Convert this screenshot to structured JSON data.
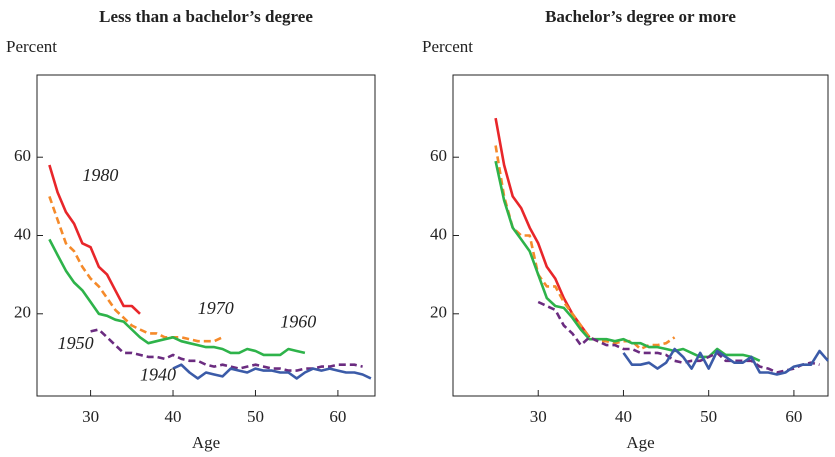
{
  "chart_data": [
    {
      "type": "line",
      "title": "Less than a bachelor’s degree",
      "y_label": "Percent",
      "x_label": "Age",
      "xlim": [
        23.5,
        64.5
      ],
      "ylim": [
        -1,
        81
      ],
      "xticks": [
        30,
        40,
        50,
        60
      ],
      "yticks": [
        20,
        40,
        60
      ],
      "grid": false,
      "series": [
        {
          "name": "1980",
          "color": "#e8262a",
          "dashed": false,
          "x": [
            25,
            26,
            27,
            28,
            29,
            30,
            31,
            32,
            33,
            34,
            35,
            36
          ],
          "values": [
            58,
            51,
            46,
            43,
            38,
            37,
            32,
            30,
            26,
            22,
            22,
            20
          ]
        },
        {
          "name": "1970",
          "color": "#f58a2a",
          "dashed": true,
          "x": [
            25,
            26,
            27,
            28,
            29,
            30,
            31,
            32,
            33,
            34,
            35,
            36,
            37,
            38,
            39,
            40,
            41,
            42,
            43,
            44,
            45,
            46
          ],
          "values": [
            50,
            44,
            38,
            36,
            32,
            29,
            27,
            24,
            21,
            19,
            17,
            16,
            15,
            15,
            14,
            14,
            14,
            13.5,
            13,
            13,
            13,
            14
          ]
        },
        {
          "name": "1960",
          "color": "#2eb34a",
          "dashed": false,
          "x": [
            25,
            26,
            27,
            28,
            29,
            30,
            31,
            32,
            33,
            34,
            35,
            36,
            37,
            38,
            39,
            40,
            41,
            42,
            43,
            44,
            45,
            46,
            47,
            48,
            49,
            50,
            51,
            52,
            53,
            54,
            55,
            56
          ],
          "values": [
            39,
            35,
            31,
            28,
            26,
            23,
            20,
            19.5,
            18.5,
            18,
            16,
            14,
            12.5,
            13,
            13.5,
            14,
            13,
            12.5,
            12,
            11.5,
            11.5,
            11,
            10,
            10,
            11,
            10.5,
            9.5,
            9.5,
            9.5,
            11,
            10.5,
            10
          ]
        },
        {
          "name": "1950",
          "color": "#6b2c80",
          "dashed": true,
          "x": [
            30,
            31,
            32,
            33,
            34,
            35,
            36,
            37,
            38,
            39,
            40,
            41,
            42,
            43,
            44,
            45,
            46,
            47,
            48,
            49,
            50,
            51,
            52,
            53,
            54,
            55,
            56,
            57,
            58,
            59,
            60,
            61,
            62,
            63
          ],
          "values": [
            15.5,
            16,
            14,
            12,
            10,
            10,
            9.5,
            9,
            9,
            8.5,
            9.5,
            8.5,
            8,
            8,
            7,
            6.5,
            7,
            6.5,
            6,
            6.5,
            7,
            6.5,
            6,
            6,
            5.5,
            5.5,
            6,
            6,
            6.5,
            6.5,
            7,
            7,
            7,
            6.5
          ]
        },
        {
          "name": "1940",
          "color": "#3b5ba8",
          "dashed": false,
          "x": [
            40,
            41,
            42,
            43,
            44,
            45,
            46,
            47,
            48,
            49,
            50,
            51,
            52,
            53,
            54,
            55,
            56,
            57,
            58,
            59,
            60,
            61,
            62,
            63,
            64
          ],
          "values": [
            6,
            7,
            5,
            3.5,
            5,
            4.5,
            4,
            6,
            5.5,
            5,
            6,
            5.5,
            5.5,
            5,
            5,
            3.5,
            5,
            6,
            5.5,
            6,
            5.5,
            5,
            5,
            4.5,
            3.5
          ]
        }
      ]
    },
    {
      "type": "line",
      "title": "Bachelor’s degree or more",
      "y_label": "Percent",
      "x_label": "Age",
      "xlim": [
        20,
        64
      ],
      "ylim": [
        -1,
        81
      ],
      "xticks": [
        30,
        40,
        50,
        60
      ],
      "yticks": [
        20,
        40,
        60
      ],
      "grid": false,
      "series": [
        {
          "color": "#e8262a",
          "dashed": false,
          "x": [
            25,
            26,
            27,
            28,
            29,
            30,
            31,
            32,
            33,
            34,
            35,
            36
          ],
          "values": [
            70,
            58,
            50,
            47,
            42,
            38,
            32,
            29,
            24,
            20,
            17,
            14
          ]
        },
        {
          "color": "#f58a2a",
          "dashed": true,
          "x": [
            25,
            26,
            27,
            28,
            29,
            30,
            31,
            32,
            33,
            34,
            35,
            36,
            37,
            38,
            39,
            40,
            41,
            42,
            43,
            44,
            45,
            46
          ],
          "values": [
            63,
            50,
            42,
            40,
            40,
            30,
            27,
            27,
            23,
            20,
            17,
            14,
            13,
            13,
            12.5,
            13,
            13,
            11,
            12,
            12,
            12.5,
            14
          ]
        },
        {
          "color": "#2eb34a",
          "dashed": false,
          "x": [
            25,
            26,
            27,
            28,
            29,
            30,
            31,
            32,
            33,
            34,
            35,
            36,
            37,
            38,
            39,
            40,
            41,
            42,
            43,
            44,
            45,
            46,
            47,
            48,
            49,
            50,
            51,
            52,
            53,
            54,
            55,
            56
          ],
          "values": [
            59,
            49,
            42,
            39,
            36,
            30,
            24,
            22,
            21.5,
            19,
            16,
            13.5,
            13.5,
            13.5,
            13,
            13.5,
            12.5,
            12.5,
            11.5,
            11.5,
            11,
            10.5,
            11,
            10,
            9,
            9,
            11,
            9.5,
            9.5,
            9.5,
            9,
            8
          ]
        },
        {
          "color": "#6b2c80",
          "dashed": true,
          "x": [
            30,
            31,
            32,
            33,
            34,
            35,
            36,
            37,
            38,
            39,
            40,
            41,
            42,
            43,
            44,
            45,
            46,
            47,
            48,
            49,
            50,
            51,
            52,
            53,
            54,
            55,
            56,
            57,
            58,
            59,
            60,
            61,
            62,
            63
          ],
          "values": [
            23,
            22,
            21,
            17,
            15,
            12,
            14,
            13,
            12,
            12,
            11,
            11,
            10,
            10,
            10,
            9.5,
            8,
            7.5,
            8,
            8,
            9,
            10,
            8,
            8,
            8,
            8,
            6.5,
            6,
            5,
            5.5,
            6,
            7,
            7.5,
            7
          ]
        },
        {
          "color": "#3b5ba8",
          "dashed": false,
          "x": [
            40,
            41,
            42,
            43,
            44,
            45,
            46,
            47,
            48,
            49,
            50,
            51,
            52,
            53,
            54,
            55,
            56,
            57,
            58,
            59,
            60,
            61,
            62,
            63,
            64
          ],
          "values": [
            10,
            7,
            7,
            7.5,
            6,
            7.5,
            11,
            9,
            6,
            10,
            6,
            10.5,
            9,
            7.5,
            7.5,
            9,
            5,
            5,
            4.5,
            5,
            6.5,
            7,
            7,
            10.5,
            8
          ]
        }
      ]
    }
  ]
}
